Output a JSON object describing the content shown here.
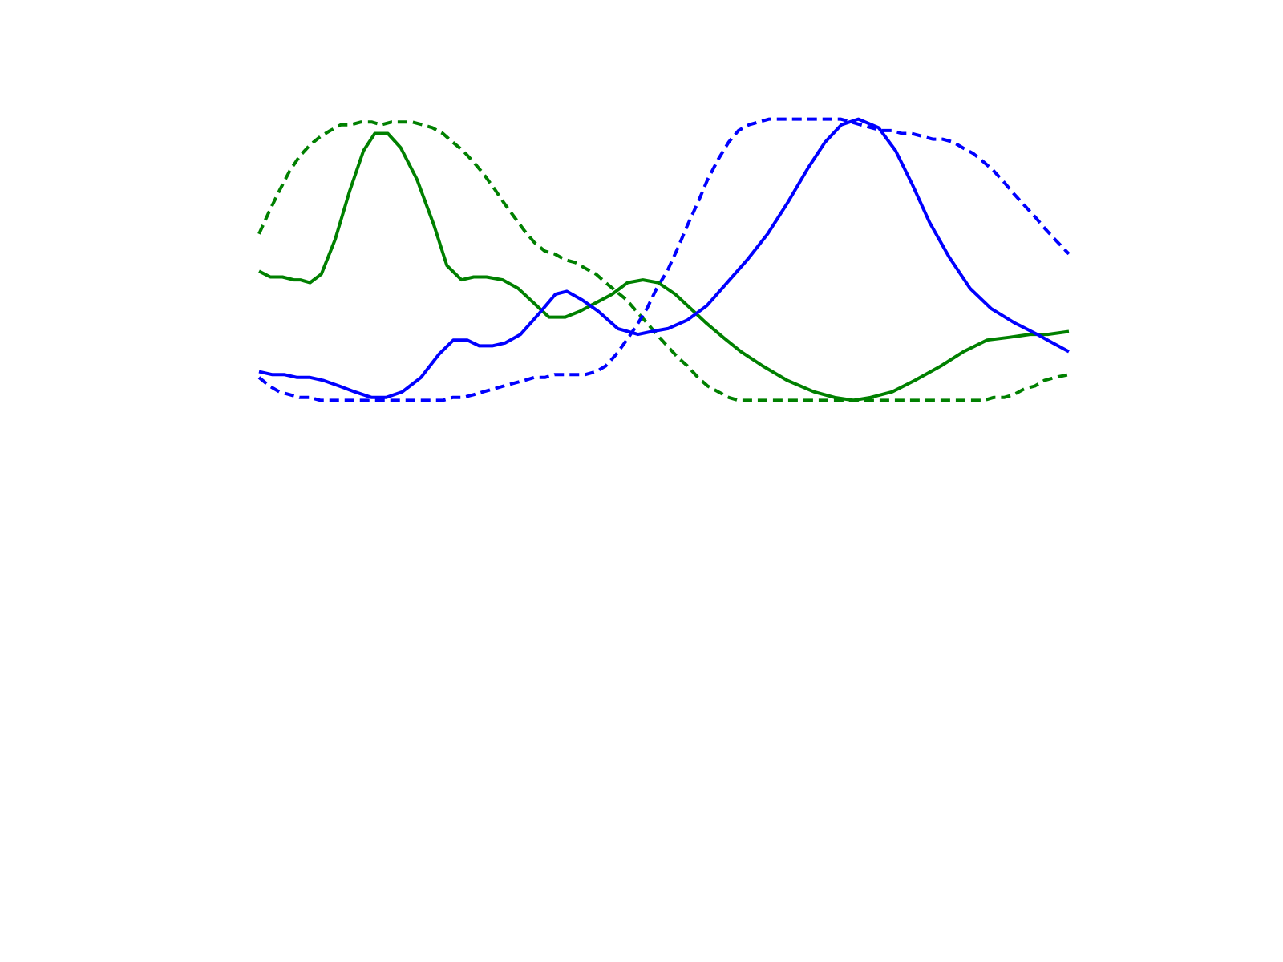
{
  "chart_data": {
    "type": "line",
    "title": "",
    "xlabel": "",
    "ylabel": "",
    "grid": false,
    "axes_visible": false,
    "xlim": [
      0,
      1
    ],
    "ylim": [
      0,
      1
    ],
    "series": [
      {
        "color": "#008000",
        "dash": "dashed",
        "points": [
          [
            0.0,
            0.59
          ],
          [
            0.013,
            0.67
          ],
          [
            0.025,
            0.74
          ],
          [
            0.038,
            0.81
          ],
          [
            0.05,
            0.86
          ],
          [
            0.063,
            0.9
          ],
          [
            0.076,
            0.93
          ],
          [
            0.088,
            0.95
          ],
          [
            0.101,
            0.97
          ],
          [
            0.113,
            0.97
          ],
          [
            0.126,
            0.98
          ],
          [
            0.139,
            0.98
          ],
          [
            0.151,
            0.97
          ],
          [
            0.164,
            0.98
          ],
          [
            0.176,
            0.98
          ],
          [
            0.189,
            0.98
          ],
          [
            0.202,
            0.97
          ],
          [
            0.214,
            0.96
          ],
          [
            0.227,
            0.94
          ],
          [
            0.239,
            0.91
          ],
          [
            0.252,
            0.88
          ],
          [
            0.265,
            0.84
          ],
          [
            0.277,
            0.8
          ],
          [
            0.29,
            0.75
          ],
          [
            0.302,
            0.7
          ],
          [
            0.315,
            0.65
          ],
          [
            0.328,
            0.6
          ],
          [
            0.34,
            0.56
          ],
          [
            0.353,
            0.53
          ],
          [
            0.365,
            0.52
          ],
          [
            0.378,
            0.5
          ],
          [
            0.391,
            0.49
          ],
          [
            0.403,
            0.47
          ],
          [
            0.416,
            0.45
          ],
          [
            0.428,
            0.42
          ],
          [
            0.441,
            0.39
          ],
          [
            0.454,
            0.36
          ],
          [
            0.466,
            0.32
          ],
          [
            0.479,
            0.28
          ],
          [
            0.491,
            0.24
          ],
          [
            0.504,
            0.2
          ],
          [
            0.517,
            0.16
          ],
          [
            0.529,
            0.13
          ],
          [
            0.542,
            0.09
          ],
          [
            0.554,
            0.06
          ],
          [
            0.567,
            0.04
          ],
          [
            0.58,
            0.02
          ],
          [
            0.592,
            0.01
          ],
          [
            0.605,
            0.01
          ],
          [
            0.617,
            0.01
          ],
          [
            0.63,
            0.01
          ],
          [
            0.643,
            0.01
          ],
          [
            0.655,
            0.01
          ],
          [
            0.668,
            0.01
          ],
          [
            0.68,
            0.01
          ],
          [
            0.693,
            0.01
          ],
          [
            0.706,
            0.01
          ],
          [
            0.718,
            0.01
          ],
          [
            0.731,
            0.01
          ],
          [
            0.743,
            0.01
          ],
          [
            0.756,
            0.01
          ],
          [
            0.769,
            0.01
          ],
          [
            0.781,
            0.01
          ],
          [
            0.794,
            0.01
          ],
          [
            0.806,
            0.01
          ],
          [
            0.819,
            0.01
          ],
          [
            0.832,
            0.01
          ],
          [
            0.844,
            0.01
          ],
          [
            0.857,
            0.01
          ],
          [
            0.869,
            0.01
          ],
          [
            0.882,
            0.01
          ],
          [
            0.895,
            0.01
          ],
          [
            0.907,
            0.02
          ],
          [
            0.92,
            0.02
          ],
          [
            0.932,
            0.03
          ],
          [
            0.945,
            0.05
          ],
          [
            0.958,
            0.06
          ],
          [
            0.97,
            0.08
          ],
          [
            0.983,
            0.09
          ],
          [
            1.0,
            0.1
          ]
        ]
      },
      {
        "color": "#0000ff",
        "dash": "dashed",
        "points": [
          [
            0.0,
            0.09
          ],
          [
            0.013,
            0.06
          ],
          [
            0.025,
            0.04
          ],
          [
            0.038,
            0.03
          ],
          [
            0.05,
            0.02
          ],
          [
            0.063,
            0.02
          ],
          [
            0.076,
            0.01
          ],
          [
            0.088,
            0.01
          ],
          [
            0.101,
            0.01
          ],
          [
            0.113,
            0.01
          ],
          [
            0.126,
            0.01
          ],
          [
            0.139,
            0.01
          ],
          [
            0.151,
            0.01
          ],
          [
            0.164,
            0.01
          ],
          [
            0.176,
            0.01
          ],
          [
            0.189,
            0.01
          ],
          [
            0.202,
            0.01
          ],
          [
            0.214,
            0.01
          ],
          [
            0.227,
            0.01
          ],
          [
            0.239,
            0.02
          ],
          [
            0.252,
            0.02
          ],
          [
            0.265,
            0.03
          ],
          [
            0.277,
            0.04
          ],
          [
            0.29,
            0.05
          ],
          [
            0.302,
            0.06
          ],
          [
            0.315,
            0.07
          ],
          [
            0.328,
            0.08
          ],
          [
            0.34,
            0.09
          ],
          [
            0.353,
            0.09
          ],
          [
            0.365,
            0.1
          ],
          [
            0.378,
            0.1
          ],
          [
            0.391,
            0.1
          ],
          [
            0.403,
            0.1
          ],
          [
            0.416,
            0.11
          ],
          [
            0.428,
            0.13
          ],
          [
            0.441,
            0.17
          ],
          [
            0.454,
            0.22
          ],
          [
            0.466,
            0.27
          ],
          [
            0.479,
            0.33
          ],
          [
            0.491,
            0.4
          ],
          [
            0.504,
            0.46
          ],
          [
            0.517,
            0.54
          ],
          [
            0.529,
            0.62
          ],
          [
            0.542,
            0.7
          ],
          [
            0.554,
            0.78
          ],
          [
            0.567,
            0.85
          ],
          [
            0.58,
            0.91
          ],
          [
            0.592,
            0.95
          ],
          [
            0.605,
            0.97
          ],
          [
            0.617,
            0.98
          ],
          [
            0.63,
            0.99
          ],
          [
            0.643,
            0.99
          ],
          [
            0.655,
            0.99
          ],
          [
            0.668,
            0.99
          ],
          [
            0.68,
            0.99
          ],
          [
            0.693,
            0.99
          ],
          [
            0.706,
            0.99
          ],
          [
            0.718,
            0.99
          ],
          [
            0.731,
            0.98
          ],
          [
            0.743,
            0.97
          ],
          [
            0.756,
            0.96
          ],
          [
            0.769,
            0.95
          ],
          [
            0.781,
            0.95
          ],
          [
            0.794,
            0.94
          ],
          [
            0.806,
            0.94
          ],
          [
            0.819,
            0.93
          ],
          [
            0.832,
            0.92
          ],
          [
            0.844,
            0.92
          ],
          [
            0.857,
            0.91
          ],
          [
            0.869,
            0.89
          ],
          [
            0.882,
            0.87
          ],
          [
            0.895,
            0.84
          ],
          [
            0.907,
            0.81
          ],
          [
            0.92,
            0.77
          ],
          [
            0.932,
            0.73
          ],
          [
            0.945,
            0.69
          ],
          [
            0.958,
            0.65
          ],
          [
            0.97,
            0.61
          ],
          [
            0.983,
            0.57
          ],
          [
            1.0,
            0.52
          ]
        ]
      },
      {
        "color": "#008000",
        "dash": "solid",
        "points": [
          [
            0.0,
            0.46
          ],
          [
            0.014,
            0.44
          ],
          [
            0.029,
            0.44
          ],
          [
            0.043,
            0.43
          ],
          [
            0.051,
            0.43
          ],
          [
            0.063,
            0.42
          ],
          [
            0.077,
            0.45
          ],
          [
            0.094,
            0.57
          ],
          [
            0.112,
            0.74
          ],
          [
            0.129,
            0.88
          ],
          [
            0.143,
            0.94
          ],
          [
            0.159,
            0.94
          ],
          [
            0.175,
            0.89
          ],
          [
            0.195,
            0.78
          ],
          [
            0.216,
            0.62
          ],
          [
            0.232,
            0.48
          ],
          [
            0.25,
            0.43
          ],
          [
            0.265,
            0.44
          ],
          [
            0.281,
            0.44
          ],
          [
            0.301,
            0.43
          ],
          [
            0.32,
            0.4
          ],
          [
            0.339,
            0.35
          ],
          [
            0.358,
            0.3
          ],
          [
            0.378,
            0.3
          ],
          [
            0.396,
            0.32
          ],
          [
            0.416,
            0.35
          ],
          [
            0.436,
            0.38
          ],
          [
            0.455,
            0.42
          ],
          [
            0.474,
            0.43
          ],
          [
            0.493,
            0.42
          ],
          [
            0.514,
            0.38
          ],
          [
            0.533,
            0.33
          ],
          [
            0.552,
            0.28
          ],
          [
            0.573,
            0.23
          ],
          [
            0.595,
            0.18
          ],
          [
            0.622,
            0.13
          ],
          [
            0.652,
            0.08
          ],
          [
            0.685,
            0.04
          ],
          [
            0.711,
            0.02
          ],
          [
            0.734,
            0.01
          ],
          [
            0.755,
            0.02
          ],
          [
            0.782,
            0.04
          ],
          [
            0.81,
            0.08
          ],
          [
            0.842,
            0.13
          ],
          [
            0.87,
            0.18
          ],
          [
            0.899,
            0.22
          ],
          [
            0.927,
            0.23
          ],
          [
            0.952,
            0.24
          ],
          [
            0.974,
            0.24
          ],
          [
            1.0,
            0.25
          ]
        ]
      },
      {
        "color": "#0000ff",
        "dash": "solid",
        "points": [
          [
            0.0,
            0.11
          ],
          [
            0.016,
            0.1
          ],
          [
            0.031,
            0.1
          ],
          [
            0.047,
            0.09
          ],
          [
            0.063,
            0.09
          ],
          [
            0.079,
            0.08
          ],
          [
            0.099,
            0.06
          ],
          [
            0.118,
            0.04
          ],
          [
            0.139,
            0.02
          ],
          [
            0.157,
            0.02
          ],
          [
            0.177,
            0.04
          ],
          [
            0.2,
            0.09
          ],
          [
            0.222,
            0.17
          ],
          [
            0.24,
            0.22
          ],
          [
            0.257,
            0.22
          ],
          [
            0.272,
            0.2
          ],
          [
            0.288,
            0.2
          ],
          [
            0.304,
            0.21
          ],
          [
            0.323,
            0.24
          ],
          [
            0.345,
            0.31
          ],
          [
            0.366,
            0.38
          ],
          [
            0.38,
            0.39
          ],
          [
            0.399,
            0.36
          ],
          [
            0.419,
            0.32
          ],
          [
            0.443,
            0.26
          ],
          [
            0.468,
            0.24
          ],
          [
            0.485,
            0.25
          ],
          [
            0.505,
            0.26
          ],
          [
            0.529,
            0.29
          ],
          [
            0.553,
            0.34
          ],
          [
            0.578,
            0.42
          ],
          [
            0.603,
            0.5
          ],
          [
            0.628,
            0.59
          ],
          [
            0.653,
            0.7
          ],
          [
            0.678,
            0.82
          ],
          [
            0.699,
            0.91
          ],
          [
            0.719,
            0.97
          ],
          [
            0.74,
            0.99
          ],
          [
            0.765,
            0.96
          ],
          [
            0.786,
            0.88
          ],
          [
            0.807,
            0.76
          ],
          [
            0.828,
            0.63
          ],
          [
            0.852,
            0.51
          ],
          [
            0.878,
            0.4
          ],
          [
            0.904,
            0.33
          ],
          [
            0.933,
            0.28
          ],
          [
            0.961,
            0.24
          ],
          [
            0.98,
            0.21
          ],
          [
            1.0,
            0.18
          ]
        ]
      }
    ]
  }
}
